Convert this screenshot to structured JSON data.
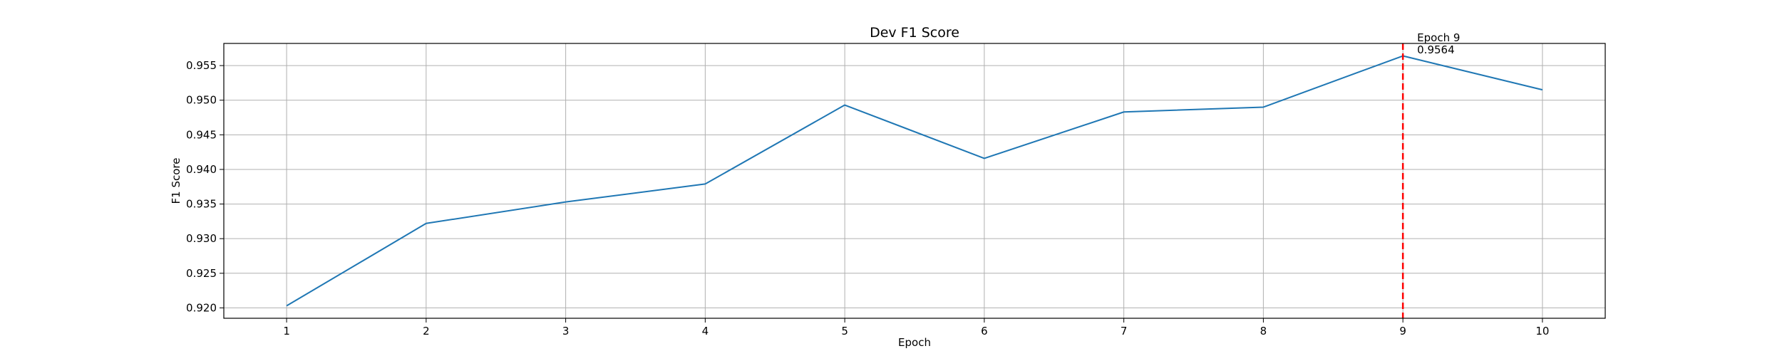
{
  "chart_data": {
    "type": "line",
    "title": "Dev F1 Score",
    "xlabel": "Epoch",
    "ylabel": "F1 Score",
    "x": [
      1,
      2,
      3,
      4,
      5,
      6,
      7,
      8,
      9,
      10
    ],
    "series": [
      {
        "values": [
          0.9203,
          0.9322,
          0.9353,
          0.9379,
          0.9493,
          0.9416,
          0.9483,
          0.949,
          0.9564,
          0.9515
        ],
        "color": "#1f77b4"
      }
    ],
    "xlim": [
      0.55,
      10.45
    ],
    "ylim": [
      0.9185,
      0.9582
    ],
    "xticks": [
      1,
      2,
      3,
      4,
      5,
      6,
      7,
      8,
      9,
      10
    ],
    "yticks": [
      0.92,
      0.925,
      0.93,
      0.935,
      0.94,
      0.945,
      0.95,
      0.955
    ],
    "ytick_labels": [
      "0.920",
      "0.925",
      "0.930",
      "0.935",
      "0.940",
      "0.945",
      "0.950",
      "0.955"
    ],
    "grid": true,
    "best_marker": {
      "x": 9,
      "line_color": "#ff0000",
      "label_line1": "Epoch 9",
      "label_line2": "0.9564"
    }
  }
}
